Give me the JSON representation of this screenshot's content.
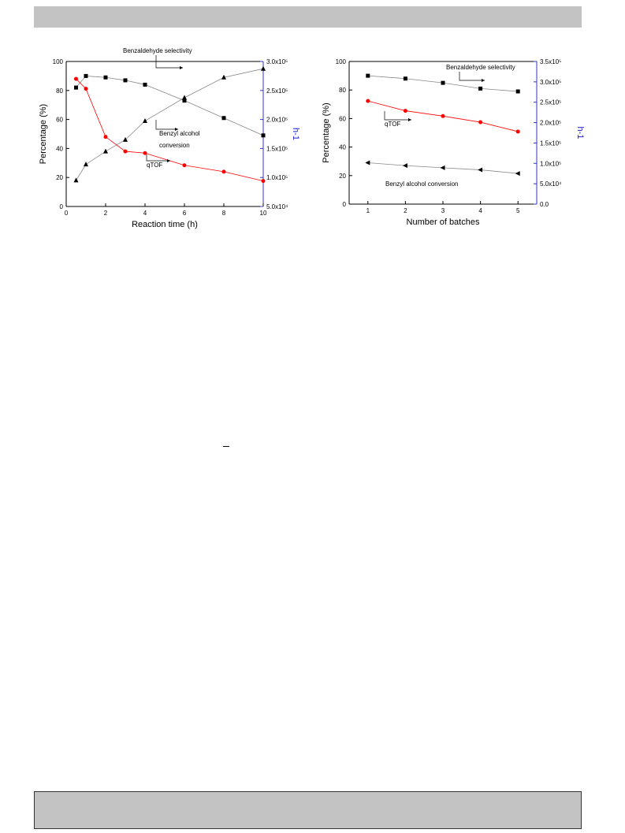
{
  "chart_data": [
    {
      "type": "line",
      "xlabel": "Reaction time (h)",
      "ylabel": "Percentage (%)",
      "y2label": "h-1",
      "xlim": [
        0,
        10
      ],
      "ylim": [
        0,
        100
      ],
      "y2lim": [
        50000,
        300000
      ],
      "x_ticks": [
        0,
        2,
        4,
        6,
        8,
        10
      ],
      "y_ticks": [
        0,
        20,
        40,
        60,
        80,
        100
      ],
      "y2_ticks": [
        "5.0x10⁴",
        "1.0x10⁵",
        "1.5x10⁵",
        "2.0x10⁵",
        "2.5x10⁵",
        "3.0x10⁵"
      ],
      "y2_tick_values": [
        50000,
        100000,
        150000,
        200000,
        250000,
        300000
      ],
      "series": [
        {
          "name": "Benzaldehyde selectivity",
          "axis": "left",
          "marker": "square",
          "color": "#000000",
          "line_color": "#888888",
          "x": [
            0.5,
            1,
            2,
            3,
            4,
            6,
            8,
            10
          ],
          "y": [
            82,
            90,
            89,
            87,
            84,
            73,
            61,
            49
          ]
        },
        {
          "name": "Benzyl alcohol conversion",
          "axis": "left",
          "marker": "triangle-up",
          "color": "#000000",
          "line_color": "#888888",
          "x": [
            0.5,
            1,
            2,
            3,
            4,
            6,
            8,
            10
          ],
          "y": [
            18,
            29,
            38,
            46,
            59,
            75,
            89,
            95
          ]
        },
        {
          "name": "qTOF",
          "axis": "right",
          "marker": "circle",
          "color": "#ff0000",
          "line_color": "#ff0000",
          "x": [
            0.5,
            1,
            2,
            3,
            4,
            6,
            8,
            10
          ],
          "y": [
            270000,
            253000,
            170000,
            145000,
            142000,
            121000,
            110000,
            94000
          ]
        }
      ],
      "annotations": [
        {
          "text": "Benzaldehyde selectivity",
          "series": 0
        },
        {
          "text": "Benzyl alcohol",
          "series": 1
        },
        {
          "text": "conversion",
          "series": 1
        },
        {
          "text": "qTOF",
          "series": 2
        }
      ]
    },
    {
      "type": "line",
      "xlabel": "Number of batches",
      "ylabel": "Percentage (%)",
      "y2label": "h-1",
      "xlim": [
        0.5,
        5.5
      ],
      "ylim": [
        0,
        100
      ],
      "y2lim": [
        0,
        350000
      ],
      "x_ticks": [
        1,
        2,
        3,
        4,
        5
      ],
      "y_ticks": [
        0,
        20,
        40,
        60,
        80,
        100
      ],
      "y2_ticks": [
        "0.0",
        "5.0x10⁴",
        "1.0x10⁵",
        "1.5x10⁵",
        "2.0x10⁵",
        "2.5x10⁵",
        "3.0x10⁵",
        "3.5x10⁵"
      ],
      "y2_tick_values": [
        0,
        50000,
        100000,
        150000,
        200000,
        250000,
        300000,
        350000
      ],
      "series": [
        {
          "name": "Benzaldehyde selectivity",
          "axis": "left",
          "marker": "square",
          "color": "#000000",
          "line_color": "#888888",
          "x": [
            1,
            2,
            3,
            4,
            5
          ],
          "y": [
            90,
            88,
            85,
            81,
            79
          ]
        },
        {
          "name": "Benzyl alcohol conversion",
          "axis": "left",
          "marker": "triangle-left",
          "color": "#000000",
          "line_color": "#888888",
          "x": [
            1,
            2,
            3,
            4,
            5
          ],
          "y": [
            29,
            27,
            25.5,
            24,
            21.5
          ]
        },
        {
          "name": "qTOF",
          "axis": "right",
          "marker": "circle",
          "color": "#ff0000",
          "line_color": "#ff0000",
          "x": [
            1,
            2,
            3,
            4,
            5
          ],
          "y": [
            253000,
            229000,
            216000,
            201000,
            178000
          ]
        }
      ],
      "annotations": [
        {
          "text": "Benzaldehyde selectivity",
          "series": 0
        },
        {
          "text": "qTOF",
          "series": 2
        },
        {
          "text": "Benzyl alcohol conversion",
          "series": 1
        }
      ]
    }
  ]
}
